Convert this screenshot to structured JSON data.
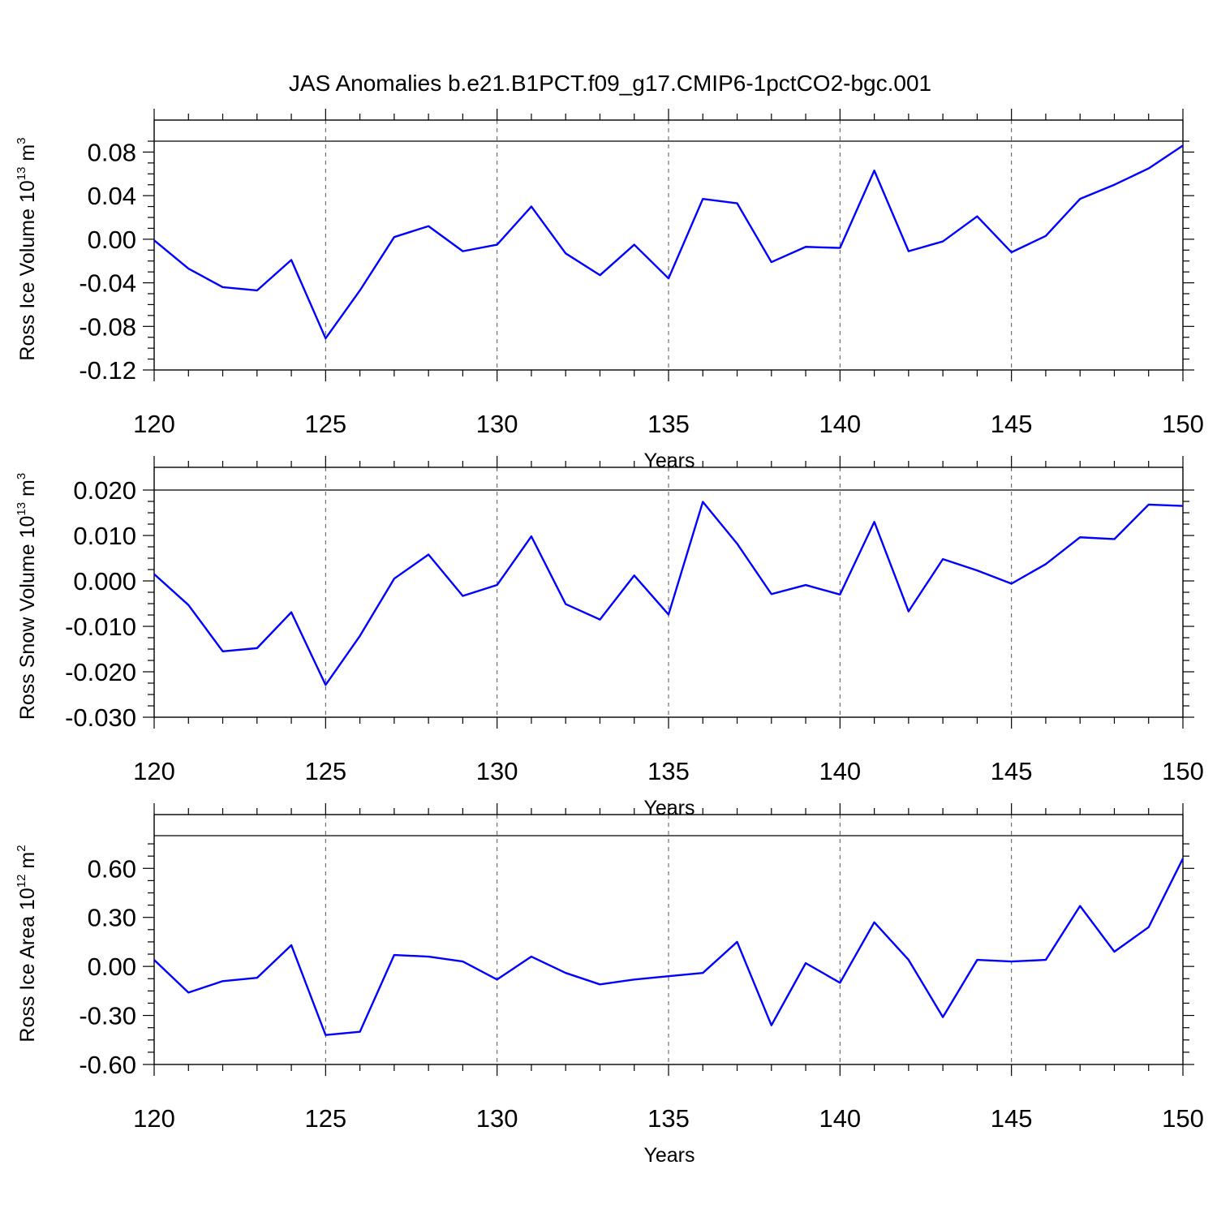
{
  "title": "JAS Anomalies b.e21.B1PCT.f09_g17.CMIP6-1pctCO2-bgc.001",
  "series_color": "#0000ff",
  "chart_data": [
    {
      "type": "line",
      "title": "",
      "xlabel": "Years",
      "ylabel": "Ross Ice Volume 10",
      "ylabel_exp": "13",
      "ylabel_unit": " m",
      "ylabel_unit_exp": "3",
      "xlim": [
        120,
        150
      ],
      "ylim": [
        -0.12,
        0.09
      ],
      "xticks": [
        120,
        125,
        130,
        135,
        140,
        145,
        150
      ],
      "xtick_labels": [
        "120",
        "125",
        "130",
        "135",
        "140",
        "145",
        "150"
      ],
      "yticks": [
        -0.12,
        -0.08,
        -0.04,
        0.0,
        0.04,
        0.08
      ],
      "ytick_labels": [
        "-0.12",
        "-0.08",
        "-0.04",
        "0.00",
        "0.04",
        "0.08"
      ],
      "x": [
        120,
        121,
        122,
        123,
        124,
        125,
        126,
        127,
        128,
        129,
        130,
        131,
        132,
        133,
        134,
        135,
        136,
        137,
        138,
        139,
        140,
        141,
        142,
        143,
        144,
        145,
        146,
        147,
        148,
        149,
        150
      ],
      "y": [
        -0.001,
        -0.027,
        -0.044,
        -0.047,
        -0.019,
        -0.091,
        -0.047,
        0.002,
        0.012,
        -0.011,
        -0.005,
        0.03,
        -0.013,
        -0.033,
        -0.005,
        -0.036,
        0.037,
        0.033,
        -0.021,
        -0.007,
        -0.008,
        0.063,
        -0.011,
        -0.002,
        0.021,
        -0.012,
        0.003,
        0.037,
        0.05,
        0.065,
        0.086
      ]
    },
    {
      "type": "line",
      "title": "",
      "xlabel": "Years",
      "ylabel": "Ross Snow Volume 10",
      "ylabel_exp": "13",
      "ylabel_unit": " m",
      "ylabel_unit_exp": "3",
      "xlim": [
        120,
        150
      ],
      "ylim": [
        -0.03,
        0.02
      ],
      "xticks": [
        120,
        125,
        130,
        135,
        140,
        145,
        150
      ],
      "xtick_labels": [
        "120",
        "125",
        "130",
        "135",
        "140",
        "145",
        "150"
      ],
      "yticks": [
        -0.03,
        -0.02,
        -0.01,
        0.0,
        0.01,
        0.02
      ],
      "ytick_labels": [
        "-0.030",
        "-0.020",
        "-0.010",
        "0.000",
        "0.010",
        "0.020"
      ],
      "x": [
        120,
        121,
        122,
        123,
        124,
        125,
        126,
        127,
        128,
        129,
        130,
        131,
        132,
        133,
        134,
        135,
        136,
        137,
        138,
        139,
        140,
        141,
        142,
        143,
        144,
        145,
        146,
        147,
        148,
        149,
        150
      ],
      "y": [
        0.0015,
        -0.0053,
        -0.0155,
        -0.0148,
        -0.0069,
        -0.0229,
        -0.0121,
        0.0005,
        0.0058,
        -0.0033,
        -0.0009,
        0.0098,
        -0.0051,
        -0.0085,
        0.0012,
        -0.0074,
        0.0174,
        0.0082,
        -0.0029,
        -0.0009,
        -0.003,
        0.013,
        -0.0067,
        0.0048,
        0.0023,
        -0.0006,
        0.0037,
        0.0096,
        0.0092,
        0.0168,
        0.0165
      ]
    },
    {
      "type": "line",
      "title": "",
      "xlabel": "Years",
      "ylabel": "Ross Ice Area 10",
      "ylabel_exp": "12",
      "ylabel_unit": " m",
      "ylabel_unit_exp": "2",
      "xlim": [
        120,
        150
      ],
      "ylim": [
        -0.6,
        0.8
      ],
      "xticks": [
        120,
        125,
        130,
        135,
        140,
        145,
        150
      ],
      "xtick_labels": [
        "120",
        "125",
        "130",
        "135",
        "140",
        "145",
        "150"
      ],
      "yticks": [
        -0.6,
        -0.3,
        0.0,
        0.3,
        0.6
      ],
      "ytick_labels": [
        "-0.60",
        "-0.30",
        "0.00",
        "0.30",
        "0.60"
      ],
      "x": [
        120,
        121,
        122,
        123,
        124,
        125,
        126,
        127,
        128,
        129,
        130,
        131,
        132,
        133,
        134,
        135,
        136,
        137,
        138,
        139,
        140,
        141,
        142,
        143,
        144,
        145,
        146,
        147,
        148,
        149,
        150
      ],
      "y": [
        0.04,
        -0.16,
        -0.09,
        -0.07,
        0.13,
        -0.42,
        -0.4,
        0.07,
        0.06,
        0.03,
        -0.08,
        0.06,
        -0.04,
        -0.11,
        -0.08,
        -0.06,
        -0.04,
        0.15,
        -0.36,
        0.02,
        -0.1,
        0.27,
        0.04,
        -0.31,
        0.04,
        0.03,
        0.04,
        0.37,
        0.09,
        0.24,
        0.66
      ]
    }
  ]
}
